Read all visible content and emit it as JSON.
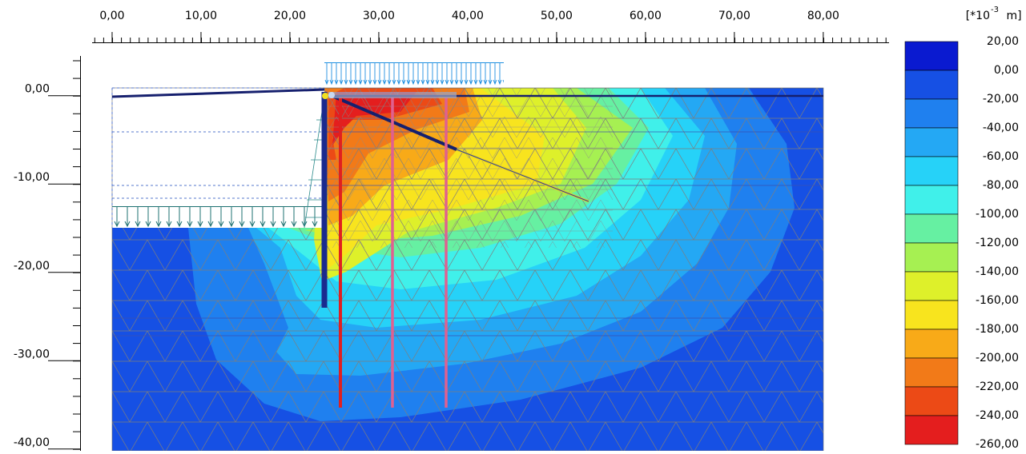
{
  "chart_data": {
    "type": "contour",
    "xlim": [
      -2.25,
      87.4
    ],
    "xticks": [
      {
        "value": 0,
        "label": "0,00"
      },
      {
        "value": 10,
        "label": "10,00"
      },
      {
        "value": 20,
        "label": "20,00"
      },
      {
        "value": 30,
        "label": "30,00"
      },
      {
        "value": 40,
        "label": "40,00"
      },
      {
        "value": 50,
        "label": "50,00"
      },
      {
        "value": 60,
        "label": "60,00"
      },
      {
        "value": 70,
        "label": "70,00"
      },
      {
        "value": 80,
        "label": "80,00"
      }
    ],
    "ylim": [
      -40.2,
      4.5
    ],
    "yticks": [
      {
        "value": 0,
        "label": "0,00"
      },
      {
        "value": -10,
        "label": "-10,00"
      },
      {
        "value": -20,
        "label": "-20,00"
      },
      {
        "value": -30,
        "label": "-30,00"
      },
      {
        "value": -40,
        "label": "-40,00"
      }
    ],
    "colorbar": {
      "unit": {
        "base": "[*10",
        "exponent": "-3",
        "suffix": " m]"
      },
      "ticks": [
        {
          "value": 20,
          "label": "20,00"
        },
        {
          "value": 0,
          "label": "0,00"
        },
        {
          "value": -20,
          "label": "-20,00"
        },
        {
          "value": -40,
          "label": "-40,00"
        },
        {
          "value": -60,
          "label": "-60,00"
        },
        {
          "value": -80,
          "label": "-80,00"
        },
        {
          "value": -100,
          "label": "-100,00"
        },
        {
          "value": -120,
          "label": "-120,00"
        },
        {
          "value": -140,
          "label": "-140,00"
        },
        {
          "value": -160,
          "label": "-160,00"
        },
        {
          "value": -180,
          "label": "-180,00"
        },
        {
          "value": -200,
          "label": "-200,00"
        },
        {
          "value": -220,
          "label": "-220,00"
        },
        {
          "value": -240,
          "label": "-240,00"
        },
        {
          "value": -260,
          "label": "-260,00"
        }
      ],
      "colors": [
        "#0a1ad0",
        "#1650e4",
        "#1f80ef",
        "#24a8f4",
        "#26d2f8",
        "#40f0ea",
        "#66f0a2",
        "#a6f052",
        "#def02a",
        "#f8e41e",
        "#f8aa18",
        "#f27a18",
        "#ec4a16",
        "#e41e1e"
      ]
    }
  }
}
